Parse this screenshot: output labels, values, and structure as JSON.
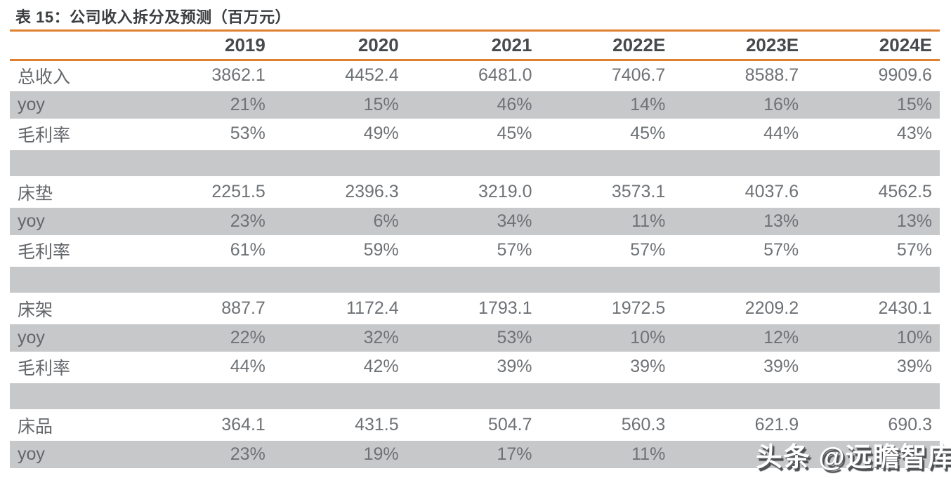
{
  "title": "表 15：公司收入拆分及预测（百万元）",
  "watermark": "头条 @远瞻智库",
  "colors": {
    "accent": "#e0802f",
    "band": "#c7c8c9",
    "body_text": "#6e7276",
    "header_text": "#474a4d",
    "title_text": "#3b3e40"
  },
  "table": {
    "columns": [
      "2019",
      "2020",
      "2021",
      "2022E",
      "2023E",
      "2024E"
    ],
    "rows": [
      {
        "type": "white",
        "label": "总收入",
        "values": [
          "3862.1",
          "4452.4",
          "6481.0",
          "7406.7",
          "8588.7",
          "9909.6"
        ]
      },
      {
        "type": "gray",
        "label": "yoy",
        "values": [
          "21%",
          "15%",
          "46%",
          "14%",
          "16%",
          "15%"
        ]
      },
      {
        "type": "white",
        "label": "毛利率",
        "values": [
          "53%",
          "49%",
          "45%",
          "45%",
          "44%",
          "43%"
        ]
      },
      {
        "type": "spacer",
        "label": "",
        "values": [
          "",
          "",
          "",
          "",
          "",
          ""
        ]
      },
      {
        "type": "white",
        "label": "床垫",
        "values": [
          "2251.5",
          "2396.3",
          "3219.0",
          "3573.1",
          "4037.6",
          "4562.5"
        ]
      },
      {
        "type": "gray",
        "label": "yoy",
        "values": [
          "23%",
          "6%",
          "34%",
          "11%",
          "13%",
          "13%"
        ]
      },
      {
        "type": "white",
        "label": "毛利率",
        "values": [
          "61%",
          "59%",
          "57%",
          "57%",
          "57%",
          "57%"
        ]
      },
      {
        "type": "spacer",
        "label": "",
        "values": [
          "",
          "",
          "",
          "",
          "",
          ""
        ]
      },
      {
        "type": "white",
        "label": "床架",
        "values": [
          "887.7",
          "1172.4",
          "1793.1",
          "1972.5",
          "2209.2",
          "2430.1"
        ]
      },
      {
        "type": "gray",
        "label": "yoy",
        "values": [
          "22%",
          "32%",
          "53%",
          "10%",
          "12%",
          "10%"
        ]
      },
      {
        "type": "white",
        "label": "毛利率",
        "values": [
          "44%",
          "42%",
          "39%",
          "39%",
          "39%",
          "39%"
        ]
      },
      {
        "type": "spacer",
        "label": "",
        "values": [
          "",
          "",
          "",
          "",
          "",
          ""
        ]
      },
      {
        "type": "white",
        "label": "床品",
        "values": [
          "364.1",
          "431.5",
          "504.7",
          "560.3",
          "621.9",
          "690.3"
        ]
      },
      {
        "type": "gray",
        "label": "yoy",
        "values": [
          "23%",
          "19%",
          "17%",
          "11%",
          "",
          ""
        ]
      }
    ]
  }
}
